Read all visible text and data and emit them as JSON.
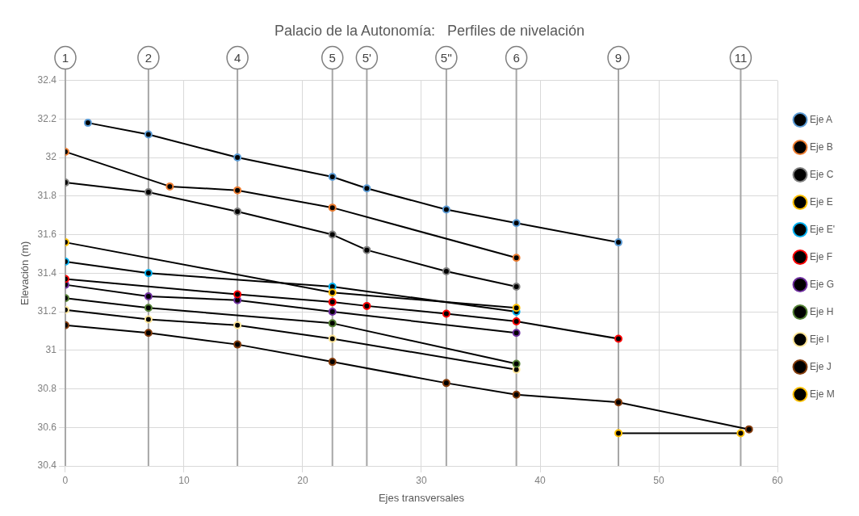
{
  "chart_data": {
    "type": "line",
    "title": "Palacio de la Autonomía:   Perfiles de nivelación",
    "xlabel": "Ejes transversales",
    "ylabel": "Elevación (m)",
    "xlim": [
      0,
      60
    ],
    "xticks": [
      0,
      10,
      20,
      30,
      40,
      50,
      60
    ],
    "ylim": [
      30.4,
      32.4
    ],
    "yticks": [
      30.4,
      30.6,
      30.8,
      31,
      31.2,
      31.4,
      31.6,
      31.8,
      32,
      32.2,
      32.4
    ],
    "grid": true,
    "legend": "right",
    "marker": "circle",
    "line_style": "solid",
    "ref_lines": [
      {
        "axis": "x",
        "value": 0
      },
      {
        "axis": "x",
        "value": 7
      },
      {
        "axis": "x",
        "value": 14.5
      },
      {
        "axis": "x",
        "value": 22.5
      },
      {
        "axis": "x",
        "value": 25.4
      },
      {
        "axis": "x",
        "value": 32.1
      },
      {
        "axis": "x",
        "value": 38
      },
      {
        "axis": "x",
        "value": 46.6
      },
      {
        "axis": "x",
        "value": 56.9
      }
    ],
    "annotations": [
      "1",
      "2",
      "4",
      "5",
      "5'",
      "5''",
      "6",
      "9",
      "11"
    ],
    "series": [
      {
        "name": "Eje A",
        "color": "#5b9bd5",
        "x": [
          1.9,
          7,
          14.5,
          22.5,
          25.4,
          32.1,
          38,
          46.6
        ],
        "values": [
          32.18,
          32.12,
          32.0,
          31.9,
          31.84,
          31.73,
          31.66,
          31.56
        ]
      },
      {
        "name": "Eje B",
        "color": "#ed7d31",
        "x": [
          0,
          8.8,
          14.5,
          22.5,
          38
        ],
        "values": [
          32.03,
          31.85,
          31.83,
          31.74,
          31.48
        ]
      },
      {
        "name": "Eje C",
        "color": "#7f7f7f",
        "x": [
          0,
          7,
          14.5,
          22.5,
          25.4,
          32.1,
          38
        ],
        "values": [
          31.87,
          31.82,
          31.72,
          31.6,
          31.52,
          31.41,
          31.33
        ]
      },
      {
        "name": "Eje E",
        "color": "#ffc000",
        "x": [
          0,
          22.5,
          38
        ],
        "values": [
          31.56,
          31.3,
          31.22
        ]
      },
      {
        "name": "Eje E'",
        "color": "#00b0f0",
        "x": [
          0,
          7,
          22.5,
          38
        ],
        "values": [
          31.46,
          31.4,
          31.33,
          31.2
        ]
      },
      {
        "name": "Eje F",
        "color": "#ff0000",
        "x": [
          0,
          14.5,
          22.5,
          25.4,
          32.1,
          38,
          46.6
        ],
        "values": [
          31.37,
          31.29,
          31.25,
          31.23,
          31.19,
          31.15,
          31.06
        ]
      },
      {
        "name": "Eje G",
        "color": "#7030a0",
        "x": [
          0,
          7,
          14.5,
          22.5,
          38
        ],
        "values": [
          31.34,
          31.28,
          31.26,
          31.2,
          31.09
        ]
      },
      {
        "name": "Eje H",
        "color": "#548235",
        "x": [
          0,
          7,
          22.5,
          38
        ],
        "values": [
          31.27,
          31.22,
          31.14,
          30.93
        ]
      },
      {
        "name": "Eje I",
        "color": "#ffe699",
        "x": [
          0,
          7,
          14.5,
          22.5,
          38
        ],
        "values": [
          31.21,
          31.16,
          31.13,
          31.06,
          30.9
        ]
      },
      {
        "name": "Eje J",
        "color": "#843c0c",
        "x": [
          0,
          7,
          14.5,
          22.5,
          32.1,
          38,
          46.6,
          57.6
        ],
        "values": [
          31.13,
          31.09,
          31.03,
          30.94,
          30.83,
          30.77,
          30.73,
          30.59
        ]
      },
      {
        "name": "Eje M",
        "color": "#ffc000",
        "x": [
          46.6,
          56.9
        ],
        "values": [
          30.57,
          30.57
        ]
      }
    ]
  }
}
